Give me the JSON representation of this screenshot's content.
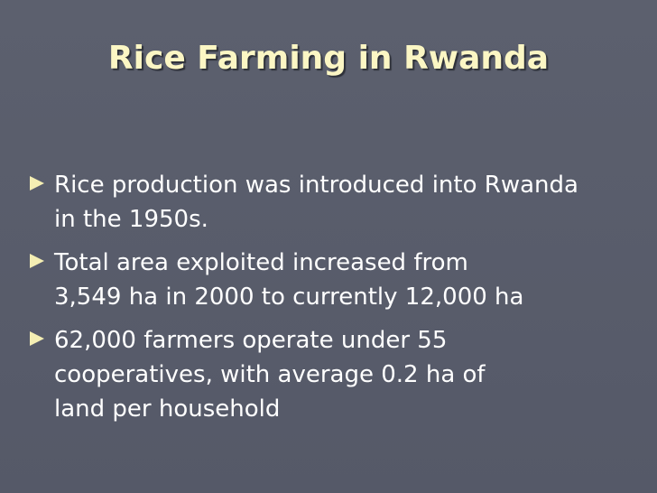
{
  "title": "Rice Farming in Rwanda",
  "bullets": [
    [
      "Rice production was introduced into Rwanda",
      "in the 1950s."
    ],
    [
      "Total area exploited increased from",
      "3,549 ha in 2000 to currently 12,000 ha"
    ],
    [
      "62,000 farmers operate under 55",
      "cooperatives, with average 0.2 ha of",
      "land per household"
    ]
  ]
}
